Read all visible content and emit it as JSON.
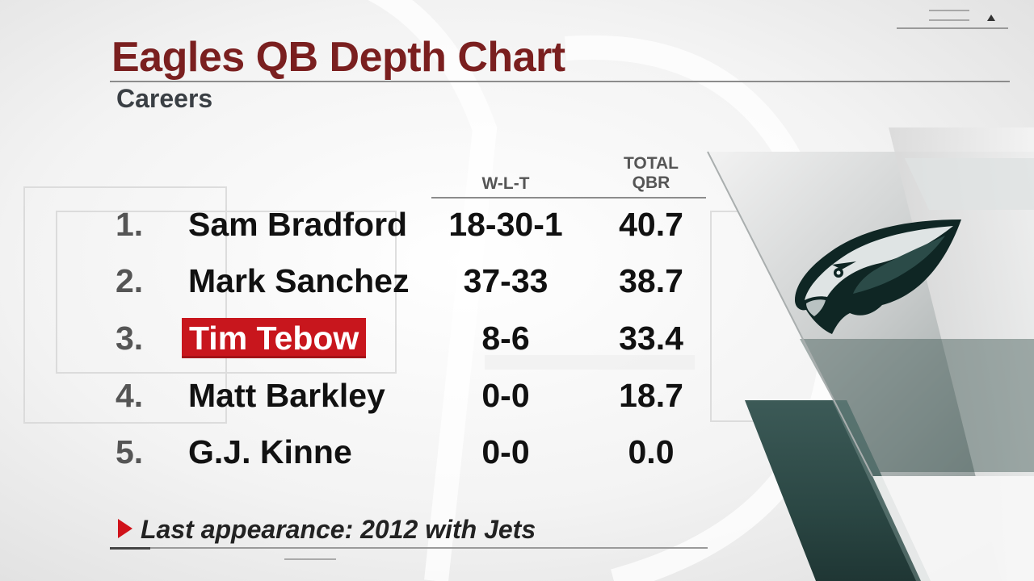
{
  "graphic": {
    "title": "Eagles QB Depth Chart",
    "subtitle": "Careers",
    "columns": {
      "wlt": "W-L-T",
      "qbr_line1": "TOTAL",
      "qbr_line2": "QBR"
    },
    "rows": [
      {
        "rank": "1.",
        "name": "Sam Bradford",
        "wlt": "18-30-1",
        "qbr": "40.7",
        "highlighted": false
      },
      {
        "rank": "2.",
        "name": "Mark Sanchez",
        "wlt": "37-33",
        "qbr": "38.7",
        "highlighted": false
      },
      {
        "rank": "3.",
        "name": "Tim Tebow",
        "wlt": "8-6",
        "qbr": "33.4",
        "highlighted": true
      },
      {
        "rank": "4.",
        "name": "Matt Barkley",
        "wlt": "0-0",
        "qbr": "18.7",
        "highlighted": false
      },
      {
        "rank": "5.",
        "name": "G.J. Kinne",
        "wlt": "0-0",
        "qbr": "0.0",
        "highlighted": false
      }
    ],
    "footnote": "Last appearance: 2012 with Jets"
  },
  "colors": {
    "title": "#7a1f1f",
    "highlight": "#c8161d",
    "accent_arrow": "#d0121a",
    "team_green": "#1f3b38"
  },
  "icons": {
    "menu": "triangle-up-icon",
    "footnote_marker": "play-triangle-icon",
    "logo": "eagle-head-logo"
  }
}
